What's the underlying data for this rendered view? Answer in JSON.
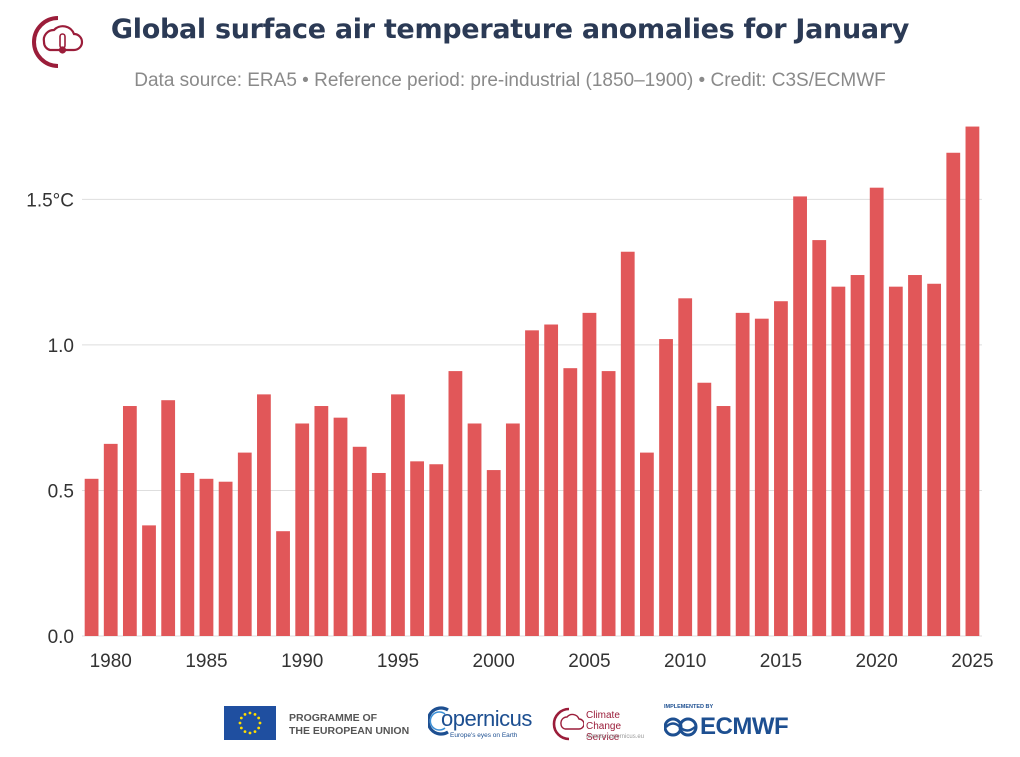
{
  "header": {
    "title": "Global surface air temperature anomalies for January",
    "subtitle": "Data source: ERA5 • Reference period: pre-industrial (1850–1900) • Credit: C3S/ECMWF"
  },
  "chart_data": {
    "type": "bar",
    "x": [
      1979,
      1980,
      1981,
      1982,
      1983,
      1984,
      1985,
      1986,
      1987,
      1988,
      1989,
      1990,
      1991,
      1992,
      1993,
      1994,
      1995,
      1996,
      1997,
      1998,
      1999,
      2000,
      2001,
      2002,
      2003,
      2004,
      2005,
      2006,
      2007,
      2008,
      2009,
      2010,
      2011,
      2012,
      2013,
      2014,
      2015,
      2016,
      2017,
      2018,
      2019,
      2020,
      2021,
      2022,
      2023,
      2024,
      2025
    ],
    "values": [
      0.54,
      0.66,
      0.79,
      0.38,
      0.81,
      0.56,
      0.54,
      0.53,
      0.63,
      0.83,
      0.36,
      0.73,
      0.79,
      0.75,
      0.65,
      0.56,
      0.83,
      0.6,
      0.59,
      0.91,
      0.73,
      0.57,
      0.73,
      1.05,
      1.07,
      0.92,
      1.11,
      0.91,
      1.32,
      0.63,
      1.02,
      1.16,
      0.87,
      0.79,
      1.11,
      1.09,
      1.15,
      1.51,
      1.36,
      1.2,
      1.24,
      1.54,
      1.2,
      1.24,
      1.21,
      1.66,
      1.75
    ],
    "xticks": [
      "1980",
      "1985",
      "1990",
      "1995",
      "2000",
      "2005",
      "2010",
      "2015",
      "2020",
      "2025"
    ],
    "xtick_values": [
      1980,
      1985,
      1990,
      1995,
      2000,
      2005,
      2010,
      2015,
      2020,
      2025
    ],
    "yticks": [
      "0.0",
      "0.5",
      "1.0",
      "1.5°C"
    ],
    "ytick_values": [
      0,
      0.5,
      1.0,
      1.5
    ],
    "ylim": [
      0,
      1.8
    ],
    "grid": true,
    "bar_color": "#e15759"
  },
  "footer": {
    "eu_label_1": "PROGRAMME OF",
    "eu_label_2": "THE EUROPEAN UNION",
    "copernicus_name": "opernicus",
    "copernicus_tagline": "Europe's eyes on Earth",
    "c3s_label_1": "Climate",
    "c3s_label_2": "Change Service",
    "c3s_url": "climate.copernicus.eu",
    "ecmwf_implemented": "IMPLEMENTED BY",
    "ecmwf_name": "ECMWF"
  },
  "colors": {
    "title": "#2b3a55",
    "bars": "#e15759",
    "c3s_brand": "#9b1d3a",
    "copernicus_blue": "#1d4f91",
    "eu_blue": "#1f4fa0",
    "eu_star": "#ffdd00"
  }
}
